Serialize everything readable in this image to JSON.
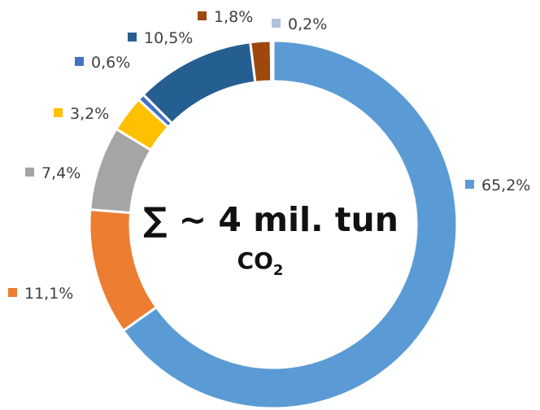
{
  "chart_data": {
    "type": "pie",
    "donut": true,
    "center_label": {
      "line1": "∑ ~ 4 mil. tun",
      "line2_main": "CO",
      "line2_subscript": "2"
    },
    "slices": [
      {
        "value": 65.2,
        "label": "65,2%",
        "color": "#5B9BD5"
      },
      {
        "value": 11.1,
        "label": "11,1%",
        "color": "#ED7D31"
      },
      {
        "value": 7.4,
        "label": "7,4%",
        "color": "#A5A5A5"
      },
      {
        "value": 3.2,
        "label": "3,2%",
        "color": "#FFC000"
      },
      {
        "value": 0.6,
        "label": "0,6%",
        "color": "#4472C4"
      },
      {
        "value": 10.5,
        "label": "10,5%",
        "color": "#255E91"
      },
      {
        "value": 1.8,
        "label": "1,8%",
        "color": "#9E480E"
      },
      {
        "value": 0.2,
        "label": "0,2%",
        "color": "#B4C1DC"
      }
    ]
  }
}
